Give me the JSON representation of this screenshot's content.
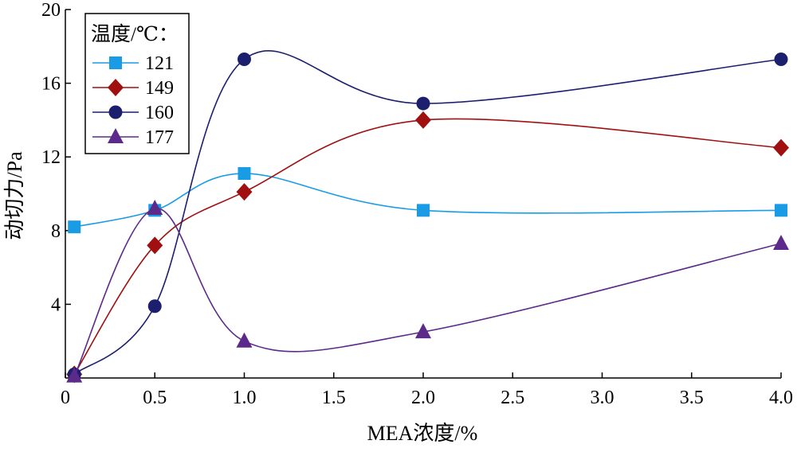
{
  "chart_data": {
    "type": "line",
    "title": "",
    "xlabel": "MEA浓度/%",
    "ylabel": "动切力/Pa",
    "xlim": [
      0,
      4.0
    ],
    "ylim": [
      0,
      20
    ],
    "x_ticks": [
      "0",
      "0.5",
      "1.0",
      "1.5",
      "2.0",
      "2.5",
      "3.0",
      "3.5",
      "4.0"
    ],
    "y_ticks": [
      "4",
      "8",
      "12",
      "16",
      "20"
    ],
    "legend_title": "温度/℃：",
    "legend_position": "top-left",
    "grid": false,
    "x": [
      0.05,
      0.5,
      1.0,
      2.0,
      4.0
    ],
    "series": [
      {
        "name": "121",
        "color": "#1a9be6",
        "marker": "square",
        "values": [
          8.2,
          9.1,
          11.1,
          9.1,
          9.1
        ]
      },
      {
        "name": "149",
        "color": "#a01010",
        "marker": "diamond",
        "values": [
          0.2,
          7.2,
          10.1,
          14.0,
          12.5
        ]
      },
      {
        "name": "160",
        "color": "#1c1f6e",
        "marker": "circle",
        "values": [
          0.2,
          3.9,
          17.3,
          14.9,
          17.3
        ]
      },
      {
        "name": "177",
        "color": "#5b2a8a",
        "marker": "triangle",
        "values": [
          0.1,
          9.2,
          2.0,
          2.5,
          7.3
        ]
      }
    ]
  }
}
